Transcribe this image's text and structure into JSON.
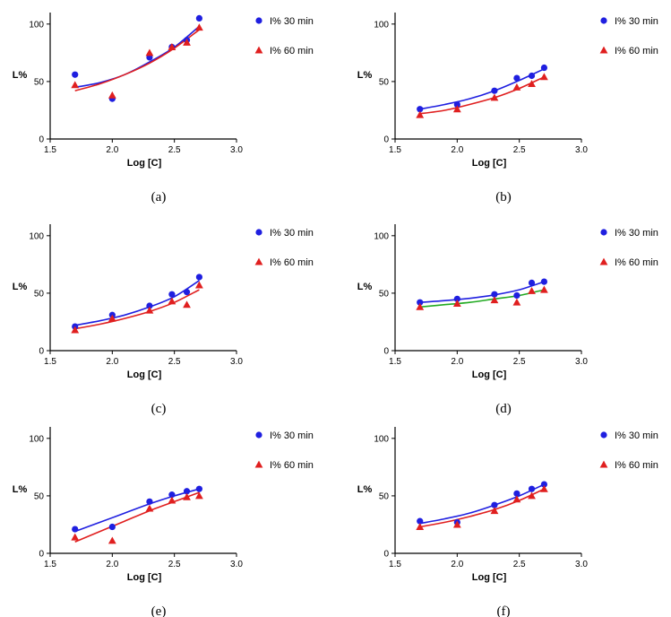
{
  "chart_data": [
    {
      "panel": "(a)",
      "type": "scatter",
      "xlabel": "Log [C]",
      "ylabel": "L%",
      "xlim": [
        1.5,
        3.0
      ],
      "ylim": [
        0,
        110
      ],
      "xticks": [
        "1.5",
        "2.0",
        "2.5",
        "3.0"
      ],
      "yticks": [
        "0",
        "50",
        "100"
      ],
      "x": [
        1.7,
        2.0,
        2.3,
        2.48,
        2.6,
        2.7
      ],
      "series": [
        {
          "name": "I% 30 min",
          "marker": "circle",
          "color": "#1f1fe0",
          "values": [
            56,
            35,
            71,
            80,
            86,
            105
          ],
          "fit": {
            "x": [
              1.7,
              1.9,
              2.1,
              2.3,
              2.5,
              2.7
            ],
            "y": [
              45,
              49,
              56,
              67,
              80,
              98
            ]
          }
        },
        {
          "name": "I% 60 min",
          "marker": "triangle",
          "color": "#e01f1f",
          "values": [
            47,
            38,
            75,
            80,
            84,
            97
          ],
          "fit": {
            "x": [
              1.7,
              1.9,
              2.1,
              2.3,
              2.5,
              2.7
            ],
            "y": [
              42,
              48,
              56,
              66,
              79,
              95
            ]
          }
        }
      ]
    },
    {
      "panel": "(b)",
      "type": "scatter",
      "xlabel": "Log [C]",
      "ylabel": "L%",
      "xlim": [
        1.5,
        3.0
      ],
      "ylim": [
        0,
        110
      ],
      "xticks": [
        "1.5",
        "2.0",
        "2.5",
        "3.0"
      ],
      "yticks": [
        "0",
        "50",
        "100"
      ],
      "x": [
        1.7,
        2.0,
        2.3,
        2.48,
        2.6,
        2.7
      ],
      "series": [
        {
          "name": "I% 30 min",
          "marker": "circle",
          "color": "#1f1fe0",
          "values": [
            26,
            30,
            42,
            53,
            55,
            62
          ],
          "fit": {
            "x": [
              1.7,
              1.9,
              2.1,
              2.3,
              2.5,
              2.7
            ],
            "y": [
              26,
              30,
              35,
              42,
              51,
              61
            ]
          }
        },
        {
          "name": "I% 60 min",
          "marker": "triangle",
          "color": "#e01f1f",
          "values": [
            21,
            26,
            36,
            45,
            48,
            54
          ],
          "fit": {
            "x": [
              1.7,
              1.9,
              2.1,
              2.3,
              2.5,
              2.7
            ],
            "y": [
              22,
              25,
              30,
              36,
              44,
              54
            ]
          }
        }
      ]
    },
    {
      "panel": "(c)",
      "type": "scatter",
      "xlabel": "Log [C]",
      "ylabel": "L%",
      "xlim": [
        1.5,
        3.0
      ],
      "ylim": [
        0,
        110
      ],
      "xticks": [
        "1.5",
        "2.0",
        "2.5",
        "3.0"
      ],
      "yticks": [
        "0",
        "50",
        "100"
      ],
      "x": [
        1.7,
        2.0,
        2.3,
        2.48,
        2.6,
        2.7
      ],
      "series": [
        {
          "name": "I% 30 min",
          "marker": "circle",
          "color": "#1f1fe0",
          "values": [
            21,
            31,
            39,
            49,
            51,
            64
          ],
          "fit": {
            "x": [
              1.7,
              1.9,
              2.1,
              2.3,
              2.5,
              2.7
            ],
            "y": [
              22,
              26,
              31,
              38,
              47,
              61
            ]
          }
        },
        {
          "name": "I% 60 min",
          "marker": "triangle",
          "color": "#e01f1f",
          "values": [
            18,
            28,
            35,
            43,
            40,
            57
          ],
          "fit": {
            "x": [
              1.7,
              1.9,
              2.1,
              2.3,
              2.5,
              2.7
            ],
            "y": [
              19,
              23,
              28,
              34,
              42,
              53
            ]
          }
        }
      ]
    },
    {
      "panel": "(d)",
      "type": "scatter",
      "xlabel": "Log [C]",
      "ylabel": "L%",
      "xlim": [
        1.5,
        3.0
      ],
      "ylim": [
        0,
        110
      ],
      "xticks": [
        "1.5",
        "2.0",
        "2.5",
        "3.0"
      ],
      "yticks": [
        "0",
        "50",
        "100"
      ],
      "x": [
        1.7,
        2.0,
        2.3,
        2.48,
        2.6,
        2.7
      ],
      "series": [
        {
          "name": "I% 30 min",
          "marker": "circle",
          "color": "#1f1fe0",
          "values": [
            42,
            45,
            49,
            48,
            59,
            60
          ],
          "fit": {
            "x": [
              1.7,
              1.9,
              2.1,
              2.3,
              2.5,
              2.7
            ],
            "y": [
              42,
              43.5,
              45.5,
              48.5,
              53,
              60
            ]
          }
        },
        {
          "name": "I% 60 min",
          "marker": "triangle",
          "color": "#e01f1f",
          "values": [
            38,
            41,
            44,
            42,
            52,
            53
          ],
          "fit": {
            "x": [
              1.7,
              1.9,
              2.1,
              2.3,
              2.5,
              2.7
            ],
            "y": [
              38,
              40,
              42,
              45,
              48,
              53
            ]
          },
          "fit_color": "#22aa22"
        }
      ]
    },
    {
      "panel": "(e)",
      "type": "scatter",
      "xlabel": "Log [C]",
      "ylabel": "L%",
      "xlim": [
        1.5,
        3.0
      ],
      "ylim": [
        0,
        110
      ],
      "xticks": [
        "1.5",
        "2.0",
        "2.5",
        "3.0"
      ],
      "yticks": [
        "0",
        "50",
        "100"
      ],
      "x": [
        1.7,
        2.0,
        2.3,
        2.48,
        2.6,
        2.7
      ],
      "series": [
        {
          "name": "I% 30 min",
          "marker": "circle",
          "color": "#1f1fe0",
          "values": [
            21,
            23,
            45,
            51,
            54,
            56
          ],
          "fit": {
            "x": [
              1.7,
              1.9,
              2.1,
              2.3,
              2.5,
              2.7
            ],
            "y": [
              19,
              27,
              35,
              43,
              50,
              56
            ]
          }
        },
        {
          "name": "I% 60 min",
          "marker": "triangle",
          "color": "#e01f1f",
          "values": [
            14,
            11,
            39,
            46,
            49,
            50
          ],
          "fit": {
            "x": [
              1.7,
              1.9,
              2.1,
              2.3,
              2.5,
              2.7
            ],
            "y": [
              10,
              19,
              28,
              37,
              45,
              53
            ]
          }
        }
      ]
    },
    {
      "panel": "(f)",
      "type": "scatter",
      "xlabel": "Log [C]",
      "ylabel": "L%",
      "xlim": [
        1.5,
        3.0
      ],
      "ylim": [
        0,
        110
      ],
      "xticks": [
        "1.5",
        "2.0",
        "2.5",
        "3.0"
      ],
      "yticks": [
        "0",
        "50",
        "100"
      ],
      "x": [
        1.7,
        2.0,
        2.3,
        2.48,
        2.6,
        2.7
      ],
      "series": [
        {
          "name": "I% 30 min",
          "marker": "circle",
          "color": "#1f1fe0",
          "values": [
            28,
            27,
            42,
            52,
            56,
            60
          ],
          "fit": {
            "x": [
              1.7,
              1.9,
              2.1,
              2.3,
              2.5,
              2.7
            ],
            "y": [
              26,
              30,
              35,
              42,
              50,
              60
            ]
          }
        },
        {
          "name": "I% 60 min",
          "marker": "triangle",
          "color": "#e01f1f",
          "values": [
            23,
            25,
            37,
            47,
            50,
            56
          ],
          "fit": {
            "x": [
              1.7,
              1.9,
              2.1,
              2.3,
              2.5,
              2.7
            ],
            "y": [
              23,
              27,
              32,
              38,
              46,
              56
            ]
          }
        }
      ]
    }
  ]
}
